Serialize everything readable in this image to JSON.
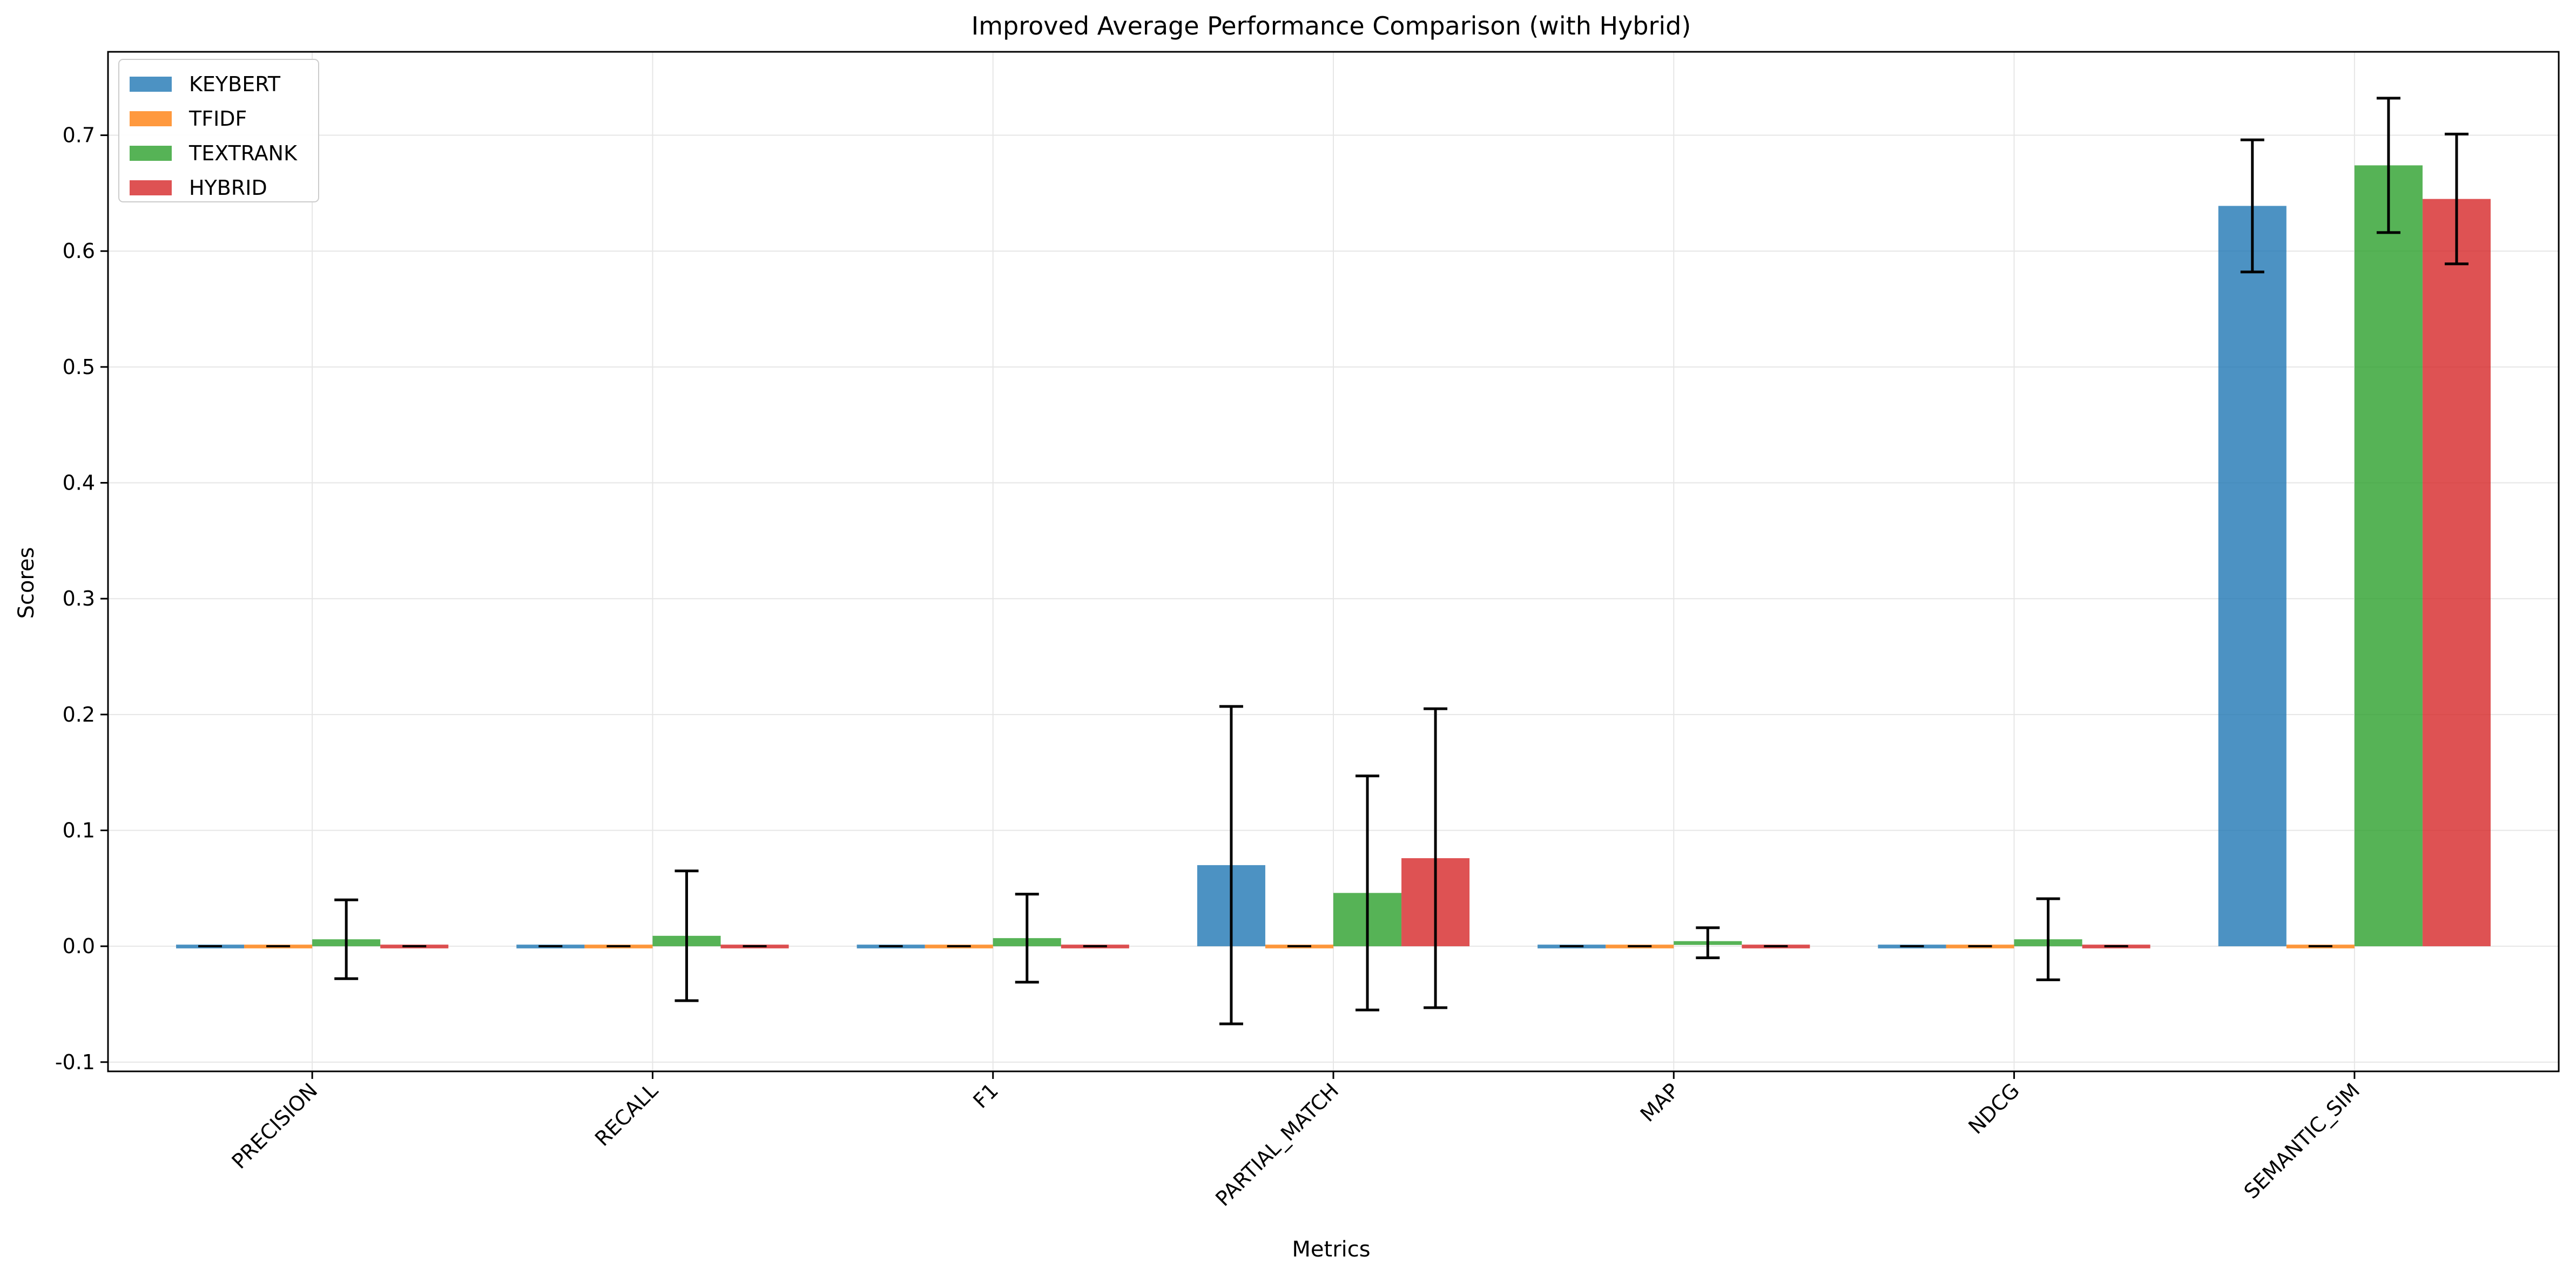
{
  "chart_data": {
    "type": "bar",
    "title": "Improved Average Performance Comparison (with Hybrid)",
    "xlabel": "Metrics",
    "ylabel": "Scores",
    "categories": [
      "PRECISION",
      "RECALL",
      "F1",
      "PARTIAL_MATCH",
      "MAP",
      "NDCG",
      "SEMANTIC_SIM"
    ],
    "ylim": [
      -0.108,
      0.772
    ],
    "yticks": [
      -0.1,
      0.0,
      0.1,
      0.2,
      0.3,
      0.4,
      0.5,
      0.6,
      0.7
    ],
    "ytick_labels": [
      "-0.1",
      "0.0",
      "0.1",
      "0.2",
      "0.3",
      "0.4",
      "0.5",
      "0.6",
      "0.7"
    ],
    "grid": true,
    "legend_position": "top-left",
    "series": [
      {
        "name": "KEYBERT",
        "color": "#1f77b4",
        "values": [
          0.0,
          0.0,
          0.0,
          0.07,
          0.0,
          0.0,
          0.639
        ],
        "errors": [
          0.0,
          0.0,
          0.0,
          0.137,
          0.0,
          0.0,
          0.057
        ]
      },
      {
        "name": "TFIDF",
        "color": "#ff7f0e",
        "values": [
          0.0,
          0.0,
          0.0,
          0.0,
          0.0,
          0.0,
          0.0
        ],
        "errors": [
          0.0,
          0.0,
          0.0,
          0.0,
          0.0,
          0.0,
          0.0
        ]
      },
      {
        "name": "TEXTRANK",
        "color": "#2ca02c",
        "values": [
          0.006,
          0.009,
          0.007,
          0.046,
          0.003,
          0.006,
          0.674
        ],
        "errors": [
          0.034,
          0.056,
          0.038,
          0.101,
          0.013,
          0.035,
          0.058
        ]
      },
      {
        "name": "HYBRID",
        "color": "#d62728",
        "values": [
          0.0,
          0.0,
          0.0,
          0.076,
          0.0,
          0.0,
          0.645
        ],
        "errors": [
          0.0,
          0.0,
          0.0,
          0.129,
          0.0,
          0.0,
          0.056
        ]
      }
    ]
  }
}
